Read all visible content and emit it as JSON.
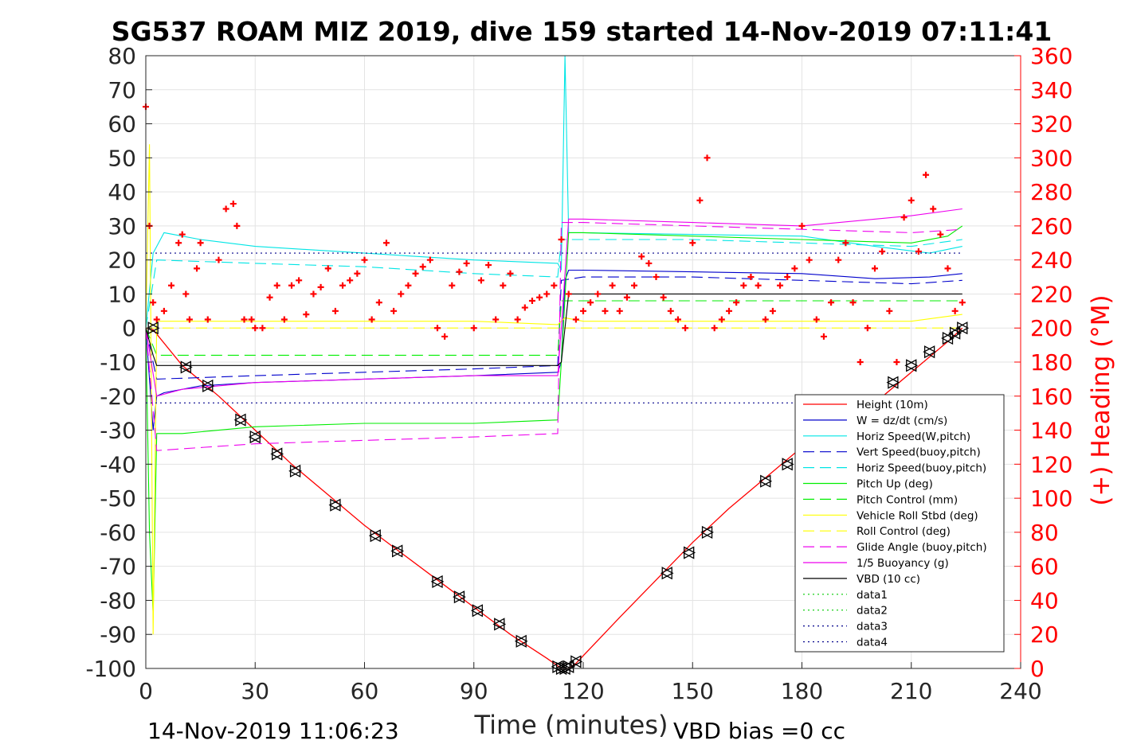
{
  "chart_data": {
    "type": "line",
    "title": "SG537 ROAM MIZ 2019, dive 159 started 14-Nov-2019 07:11:41",
    "xlabel": "Time (minutes)",
    "ylabel": "",
    "y2label": "(+) Heading (°M)",
    "xlim": [
      0,
      240
    ],
    "ylim": [
      -100,
      80
    ],
    "y2lim": [
      0,
      360
    ],
    "x_ticks": [
      "0",
      "30",
      "60",
      "90",
      "120",
      "150",
      "180",
      "210",
      "240"
    ],
    "y_ticks": [
      "80",
      "70",
      "60",
      "50",
      "40",
      "30",
      "20",
      "10",
      "0",
      "-10",
      "-20",
      "-30",
      "-40",
      "-50",
      "-60",
      "-70",
      "-80",
      "-90",
      "-100"
    ],
    "y2_ticks": [
      "360",
      "340",
      "320",
      "300",
      "280",
      "260",
      "240",
      "220",
      "200",
      "180",
      "160",
      "140",
      "120",
      "100",
      "80",
      "60",
      "40",
      "20",
      "0"
    ],
    "grid": true,
    "legend_position": "lower-right",
    "footer_left": "14-Nov-2019 11:06:23",
    "footer_right": "VBD bias =0 cc",
    "series": [
      {
        "name": "Height (10m)",
        "color": "#ff0000",
        "style": "solid",
        "x": [
          0,
          1,
          2,
          10,
          20,
          30,
          40,
          50,
          60,
          70,
          80,
          90,
          100,
          110,
          114,
          116,
          118,
          130,
          140,
          150,
          160,
          170,
          180,
          190,
          200,
          210,
          220,
          224
        ],
        "y": [
          0,
          -0.3,
          -0.5,
          -11,
          -20,
          -30,
          -40,
          -49,
          -58,
          -66,
          -74,
          -82,
          -90,
          -97,
          -100,
          -100,
          -98.5,
          -85,
          -74,
          -63,
          -53,
          -44,
          -35,
          -29,
          -22,
          -13,
          -4,
          0
        ]
      },
      {
        "name": "W = dz/dt (cm/s)",
        "color": "#0000cc",
        "style": "solid",
        "x": [
          0,
          1,
          2,
          3,
          5,
          15,
          30,
          60,
          90,
          113,
          114,
          115,
          116,
          120,
          150,
          180,
          200,
          215,
          224
        ],
        "y": [
          0,
          -15,
          -30,
          -20,
          -19,
          -17,
          -16,
          -15,
          -14,
          -13,
          -10,
          14,
          17,
          17,
          16.5,
          16,
          14.5,
          15,
          16
        ]
      },
      {
        "name": "Horiz Speed(W,pitch)",
        "color": "#00e5e5",
        "style": "solid",
        "x": [
          0,
          2,
          5,
          15,
          30,
          60,
          90,
          113,
          114,
          115,
          116,
          120,
          150,
          180,
          200,
          215,
          224
        ],
        "y": [
          0,
          22,
          28,
          26,
          24,
          22,
          20,
          19,
          17,
          80,
          28,
          28,
          27.5,
          27,
          24,
          22,
          24
        ]
      },
      {
        "name": "Vert Speed(buoy,pitch)",
        "color": "#0000cc",
        "style": "dash",
        "x": [
          0,
          3,
          30,
          60,
          90,
          113,
          114,
          120,
          150,
          180,
          210,
          224
        ],
        "y": [
          0,
          -15,
          -14,
          -13,
          -12,
          -11,
          14,
          15,
          15,
          14,
          13,
          14
        ]
      },
      {
        "name": "Horiz Speed(buoy,pitch)",
        "color": "#00e5e5",
        "style": "dash",
        "x": [
          0,
          3,
          30,
          60,
          90,
          113,
          114,
          120,
          150,
          180,
          210,
          224
        ],
        "y": [
          0,
          20,
          19,
          18,
          16,
          15,
          26,
          26,
          26,
          25,
          24,
          26
        ]
      },
      {
        "name": "Pitch Up (deg)",
        "color": "#00ee00",
        "style": "solid",
        "x": [
          0,
          1,
          2,
          3,
          10,
          30,
          60,
          90,
          113,
          114,
          116,
          120,
          150,
          180,
          210,
          220,
          224
        ],
        "y": [
          0,
          -60,
          -84,
          -31,
          -31,
          -29,
          -28,
          -28,
          -27,
          -10,
          28,
          28,
          27,
          26,
          25,
          27,
          30
        ]
      },
      {
        "name": "Pitch Control (mm)",
        "color": "#00ee00",
        "style": "dash",
        "x": [
          0,
          3,
          113,
          114,
          224
        ],
        "y": [
          0,
          -8,
          -8,
          8,
          8
        ]
      },
      {
        "name": "Vehicle Roll Stbd (deg)",
        "color": "#ffff00",
        "style": "solid",
        "x": [
          0,
          1,
          2,
          3,
          5,
          30,
          60,
          90,
          113,
          115,
          120,
          150,
          180,
          210,
          224
        ],
        "y": [
          0,
          54,
          -90,
          2,
          2,
          2,
          2,
          2,
          1,
          3,
          2,
          2,
          2,
          2,
          4
        ]
      },
      {
        "name": "Roll Control (deg)",
        "color": "#ffff00",
        "style": "dash",
        "x": [
          0,
          3,
          224
        ],
        "y": [
          0,
          0,
          0
        ]
      },
      {
        "name": "Glide Angle (buoy,pitch)",
        "color": "#ee00ee",
        "style": "dash",
        "x": [
          0,
          3,
          30,
          60,
          90,
          113,
          114,
          120,
          150,
          180,
          210,
          224
        ],
        "y": [
          0,
          -36,
          -34,
          -33,
          -32,
          -31,
          31,
          31,
          30,
          29,
          28,
          29
        ]
      },
      {
        "name": "1/5 Buoyancy (g)",
        "color": "#ee00ee",
        "style": "solid",
        "x": [
          0,
          3,
          10,
          30,
          60,
          90,
          113,
          114,
          116,
          120,
          150,
          180,
          210,
          224
        ],
        "y": [
          0,
          -20,
          -18,
          -16,
          -15,
          -14,
          -14,
          0,
          32,
          32,
          31,
          30,
          33,
          35
        ]
      },
      {
        "name": "VBD (10 cc)",
        "color": "#000000",
        "style": "solid",
        "x": [
          0,
          2,
          3,
          113,
          114,
          116,
          224
        ],
        "y": [
          0,
          -8,
          -11,
          -11,
          -10,
          10,
          10
        ]
      },
      {
        "name": "data1",
        "color": "#00cc00",
        "style": "dot",
        "x": [],
        "y": []
      },
      {
        "name": "data2",
        "color": "#00cc00",
        "style": "dot",
        "x": [],
        "y": []
      },
      {
        "name": "data3",
        "color": "#00008b",
        "style": "dot",
        "x": [
          0,
          224
        ],
        "y": [
          22,
          22
        ]
      },
      {
        "name": "data4",
        "color": "#00008b",
        "style": "dot",
        "x": [
          0,
          224
        ],
        "y": [
          -22,
          -22
        ]
      }
    ],
    "heading_points": {
      "color": "#ff0000",
      "axis": "right",
      "x": [
        0,
        1,
        2,
        3,
        5,
        7,
        9,
        10,
        11,
        12,
        14,
        15,
        17,
        20,
        22,
        24,
        25,
        27,
        29,
        30,
        32,
        34,
        36,
        38,
        40,
        42,
        44,
        46,
        48,
        50,
        52,
        54,
        56,
        58,
        60,
        62,
        64,
        66,
        68,
        70,
        72,
        74,
        76,
        78,
        80,
        82,
        84,
        86,
        88,
        90,
        92,
        94,
        96,
        98,
        100,
        102,
        104,
        106,
        108,
        110,
        112,
        114,
        116,
        118,
        120,
        122,
        124,
        126,
        128,
        130,
        132,
        134,
        136,
        138,
        140,
        142,
        144,
        146,
        148,
        150,
        152,
        154,
        156,
        158,
        160,
        162,
        164,
        166,
        168,
        170,
        172,
        174,
        176,
        178,
        180,
        182,
        184,
        186,
        188,
        190,
        192,
        194,
        196,
        198,
        200,
        202,
        204,
        206,
        208,
        210,
        212,
        214,
        216,
        218,
        220,
        222,
        224
      ],
      "y": [
        330,
        260,
        215,
        205,
        210,
        225,
        250,
        255,
        220,
        205,
        235,
        250,
        205,
        240,
        270,
        273,
        260,
        205,
        205,
        200,
        200,
        218,
        225,
        205,
        225,
        228,
        208,
        220,
        224,
        235,
        210,
        225,
        228,
        232,
        240,
        205,
        215,
        250,
        210,
        220,
        225,
        232,
        236,
        240,
        200,
        195,
        225,
        233,
        238,
        200,
        228,
        237,
        205,
        225,
        232,
        205,
        212,
        216,
        218,
        220,
        225,
        252,
        220,
        205,
        210,
        215,
        220,
        210,
        225,
        210,
        218,
        225,
        242,
        238,
        230,
        218,
        210,
        205,
        200,
        250,
        275,
        300,
        200,
        205,
        210,
        215,
        225,
        230,
        225,
        205,
        210,
        225,
        230,
        235,
        260,
        240,
        205,
        195,
        215,
        240,
        250,
        215,
        180,
        200,
        235,
        245,
        210,
        180,
        265,
        275,
        245,
        290,
        270,
        255,
        235,
        210,
        215
      ]
    },
    "markers": {
      "description": "black open triangles along height trace",
      "x": [
        2,
        11,
        17,
        26,
        30,
        36,
        41,
        52,
        63,
        69,
        80,
        86,
        91,
        97,
        103,
        113,
        114,
        115,
        116,
        118,
        143,
        149,
        154,
        170,
        176,
        205,
        210,
        215,
        220,
        222,
        224
      ],
      "y": [
        0,
        -11.5,
        -17,
        -27,
        -32,
        -37,
        -42,
        -52,
        -61,
        -65.5,
        -74.5,
        -79,
        -83,
        -87,
        -92,
        -99.5,
        -100,
        -100,
        -99.5,
        -98,
        -72,
        -66,
        -60,
        -45,
        -40,
        -16,
        -11,
        -7,
        -3,
        -1.5,
        0
      ]
    }
  }
}
